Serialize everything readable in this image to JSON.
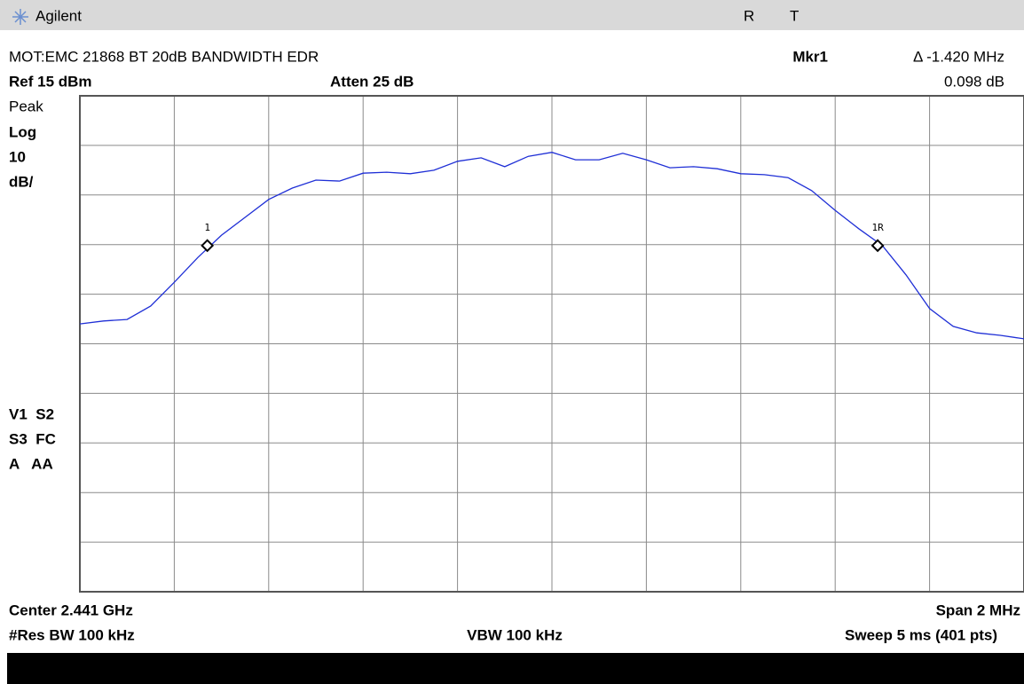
{
  "header": {
    "brand": "Agilent",
    "status": [
      "R",
      "T"
    ]
  },
  "info": {
    "title": "MOT:EMC 21868 BT 20dB BANDWIDTH EDR",
    "marker_name": "Mkr1",
    "marker_delta": "Δ  -1.420 MHz",
    "marker_level": "0.098 dB",
    "ref": "Ref 15 dBm",
    "atten": "Atten 25 dB"
  },
  "left_labels": [
    "Peak",
    "Log",
    "10",
    "dB/"
  ],
  "status_labels": [
    "V1  S2",
    "S3  FC",
    "A   AA"
  ],
  "footer": {
    "center": "Center 2.441 GHz",
    "span": "Span 2 MHz",
    "rbw": "#Res BW 100 kHz",
    "vbw": "VBW 100 kHz",
    "sweep": "Sweep 5 ms (401 pts)"
  },
  "plot": {
    "xlim": [
      2.44,
      2.442
    ],
    "ylim": [
      -85,
      15
    ],
    "color": "#1f2fd6",
    "trace": [
      -31.0,
      -30.4,
      -30.1,
      -27.4,
      -22.6,
      -17.6,
      -13.1,
      -9.5,
      -5.9,
      -3.6,
      -2.0,
      -2.2,
      -0.6,
      -0.4,
      -0.7,
      0.0,
      1.8,
      2.5,
      0.7,
      2.8,
      3.6,
      2.1,
      2.1,
      3.4,
      2.1,
      0.5,
      0.7,
      0.3,
      -0.7,
      -0.9,
      -1.5,
      -4.1,
      -8.1,
      -11.8,
      -15.2,
      -21.1,
      -27.9,
      -31.5,
      -32.8,
      -33.3,
      -34.0
    ],
    "markers": [
      {
        "label": "1",
        "x": 2.44027,
        "y": -15.2
      },
      {
        "label": "1R",
        "x": 2.44169,
        "y": -15.2
      }
    ]
  }
}
